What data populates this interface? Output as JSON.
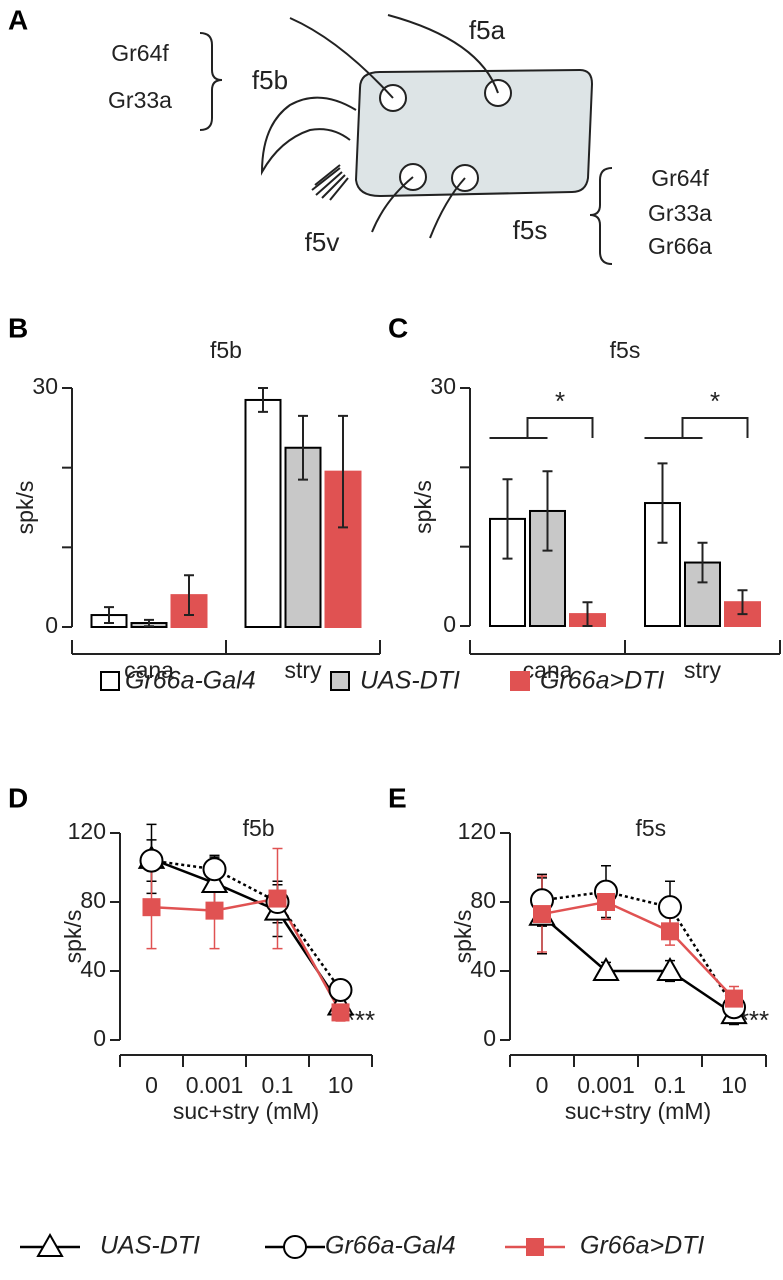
{
  "panel_labels": [
    "A",
    "B",
    "C",
    "D",
    "E"
  ],
  "diagram": {
    "f5b_receptors": [
      "Gr64f",
      "Gr33a"
    ],
    "f5b": "f5b",
    "f5a": "f5a",
    "f5v": "f5v",
    "f5s": "f5s",
    "f5s_receptors": [
      "Gr64f",
      "Gr33a",
      "Gr66a"
    ]
  },
  "chart_data": [
    {
      "type": "bar",
      "title": "f5b",
      "ylabel": "spk/s",
      "categories": [
        "cana",
        "stry"
      ],
      "ylim": [
        0,
        30
      ],
      "yticks": [
        0,
        {
          "value": 10,
          "label": null
        },
        {
          "value": 20,
          "label": null
        },
        30
      ],
      "series": [
        {
          "name": "Gr66a-Gal4",
          "color": "#ffffff",
          "edgecolor": "#000000",
          "values": [
            1.5,
            28.5
          ],
          "errors": [
            1,
            1.5
          ]
        },
        {
          "name": "UAS-DTI",
          "color": "#c8c8c8",
          "edgecolor": "#000000",
          "values": [
            0.5,
            22.5
          ],
          "errors": [
            0.4,
            4
          ]
        },
        {
          "name": "Gr66a>DTI",
          "color": "#e05252",
          "edgecolor": "#e05252",
          "values": [
            4,
            19.5
          ],
          "errors": [
            2.5,
            7
          ]
        }
      ]
    },
    {
      "type": "bar",
      "title": "f5s",
      "ylabel": "spk/s",
      "categories": [
        "cana",
        "stry"
      ],
      "ylim": [
        0,
        30
      ],
      "yticks": [
        0,
        {
          "value": 10,
          "label": null
        },
        {
          "value": 20,
          "label": null
        },
        30
      ],
      "annotations": [
        "*",
        "*"
      ],
      "series": [
        {
          "color": "#ffffff",
          "edgecolor": "#000000",
          "values": [
            13.5,
            15.5
          ],
          "errors": [
            5,
            5
          ]
        },
        {
          "color": "#c8c8c8",
          "edgecolor": "#000000",
          "values": [
            14.5,
            8
          ],
          "errors": [
            5,
            2.5
          ]
        },
        {
          "color": "#e05252",
          "edgecolor": "#e05252",
          "values": [
            1.5,
            3
          ],
          "errors": [
            1.5,
            1.5
          ]
        }
      ]
    },
    {
      "type": "line",
      "title": "f5b",
      "ylabel": "spk/s",
      "xlabel": "suc+stry (mM)",
      "categories": [
        "0",
        "0.001",
        "0.1",
        "10"
      ],
      "ylim": [
        0,
        120
      ],
      "yticks": [
        0,
        40,
        80,
        120
      ],
      "annotation": "***",
      "series": [
        {
          "name": "UAS-DTI",
          "color": "#000000",
          "marker": "triangle",
          "dash": "solid",
          "values": [
            105,
            91,
            75,
            20
          ],
          "errors": [
            20,
            15,
            15,
            4
          ]
        },
        {
          "name": "Gr66a-Gal4",
          "color": "#000000",
          "marker": "circle",
          "dash": "dotted",
          "values": [
            104,
            99,
            80,
            29
          ],
          "errors": [
            12,
            8,
            12,
            4
          ]
        },
        {
          "name": "Gr66a>DTI",
          "color": "#e05252",
          "marker": "square",
          "dash": "solid",
          "values": [
            77,
            75,
            82,
            16
          ],
          "errors": [
            24,
            22,
            29,
            5
          ]
        }
      ]
    },
    {
      "type": "line",
      "title": "f5s",
      "ylabel": "spk/s",
      "xlabel": "suc+stry (mM)",
      "categories": [
        "0",
        "0.001",
        "0.1",
        "10"
      ],
      "ylim": [
        0,
        120
      ],
      "yticks": [
        0,
        40,
        80,
        120
      ],
      "annotation": "***",
      "series": [
        {
          "color": "#000000",
          "marker": "triangle",
          "dash": "solid",
          "values": [
            72,
            40,
            40,
            15
          ],
          "errors": [
            22,
            5,
            6,
            6
          ]
        },
        {
          "color": "#000000",
          "marker": "circle",
          "dash": "dotted",
          "values": [
            81,
            86,
            77,
            19
          ],
          "errors": [
            15,
            15,
            15,
            5
          ]
        },
        {
          "color": "#e05252",
          "marker": "square",
          "dash": "solid",
          "values": [
            73,
            80,
            63,
            24
          ],
          "errors": [
            22,
            10,
            8,
            7
          ]
        }
      ]
    }
  ]
}
